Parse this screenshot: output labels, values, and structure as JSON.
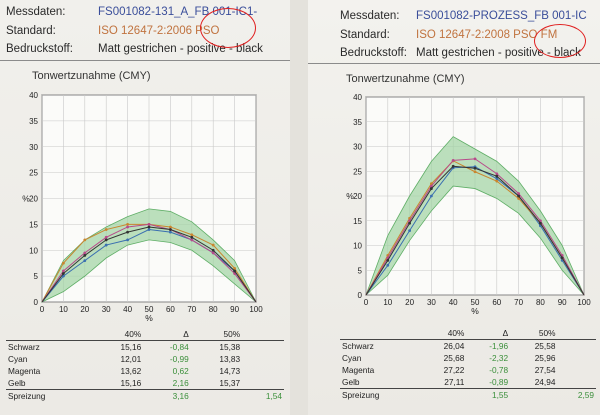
{
  "left": {
    "header": {
      "messdaten_label": "Messdaten:",
      "messdaten_value": "FS001082-131_A_FB 001-IC1-",
      "standard_label": "Standard:",
      "standard_value": "ISO 12647-2:2006 PSO",
      "stoff_label": "Bedruckstoff:",
      "stoff_value": "Matt gestrichen - positive - black"
    },
    "chart_data": {
      "type": "line",
      "title": "Tonwertzunahme (CMY)",
      "ylabel": "%",
      "xlabel": "%",
      "xlim": [
        0,
        100
      ],
      "ylim": [
        0,
        40
      ],
      "x_ticks": [
        "0",
        "10",
        "20",
        "30",
        "40",
        "50",
        "60",
        "70",
        "80",
        "90",
        "100"
      ],
      "y_ticks": [
        "0",
        "5",
        "10",
        "15",
        "20",
        "25",
        "30",
        "35",
        "40"
      ],
      "grid": true,
      "x": [
        0,
        10,
        20,
        30,
        40,
        50,
        60,
        70,
        80,
        90,
        100
      ],
      "tolerance_band": {
        "upper": [
          0,
          8,
          12,
          14.5,
          16.5,
          18,
          17.5,
          15.5,
          12,
          8,
          0
        ],
        "lower": [
          0,
          2,
          5,
          8.5,
          11,
          12,
          11.5,
          10,
          7,
          3.5,
          0
        ],
        "color": "#9fd3a3"
      },
      "series": [
        {
          "color": "#3a6fb0",
          "values": [
            0,
            5,
            8,
            11,
            12,
            14,
            13.5,
            12,
            9.5,
            6,
            0
          ]
        },
        {
          "color": "#c9862f",
          "values": [
            0,
            7.5,
            12,
            14,
            15,
            15,
            14.5,
            13,
            11,
            6.5,
            0
          ]
        },
        {
          "color": "#b84a8a",
          "values": [
            0,
            6,
            9.5,
            12.5,
            14.5,
            15,
            14,
            12,
            9.5,
            5.5,
            0
          ]
        },
        {
          "color": "#333333",
          "values": [
            0,
            5.5,
            9,
            12,
            13.5,
            14.5,
            14,
            12.5,
            10,
            6,
            0
          ]
        }
      ]
    },
    "table": {
      "headers": [
        "",
        "40%",
        "Δ",
        "50%",
        ""
      ],
      "rows": [
        {
          "name": "Schwarz",
          "v40": "15,16",
          "d": "-0,84",
          "v50": "15,38",
          "d2": ""
        },
        {
          "name": "Cyan",
          "v40": "12,01",
          "d": "-0,99",
          "v50": "13,83",
          "d2": ""
        },
        {
          "name": "Magenta",
          "v40": "13,62",
          "d": "0,62",
          "v50": "14,73",
          "d2": ""
        },
        {
          "name": "Gelb",
          "v40": "15,16",
          "d": "2,16",
          "v50": "15,37",
          "d2": ""
        },
        {
          "name": "Spreizung",
          "v40": "",
          "d": "3,16",
          "v50": "",
          "d2": "1,54"
        }
      ]
    }
  },
  "right": {
    "header": {
      "messdaten_label": "Messdaten:",
      "messdaten_value": "FS001082-PROZESS_FB 001-IC",
      "standard_label": "Standard:",
      "standard_value": "ISO 12647-2:2008 PSO FM",
      "stoff_label": "Bedruckstoff:",
      "stoff_value": "Matt gestrichen - positive - black"
    },
    "chart_data": {
      "type": "line",
      "title": "Tonwertzunahme (CMY)",
      "ylabel": "%",
      "xlabel": "%",
      "xlim": [
        0,
        100
      ],
      "ylim": [
        0,
        40
      ],
      "x_ticks": [
        "0",
        "10",
        "20",
        "30",
        "40",
        "50",
        "60",
        "70",
        "80",
        "90",
        "100"
      ],
      "y_ticks": [
        "0",
        "5",
        "10",
        "15",
        "20",
        "25",
        "30",
        "35",
        "40"
      ],
      "grid": true,
      "x": [
        0,
        10,
        20,
        30,
        40,
        50,
        60,
        70,
        80,
        90,
        100
      ],
      "tolerance_band": {
        "upper": [
          0,
          12,
          20,
          27,
          32,
          29.5,
          27,
          23,
          17,
          10,
          0
        ],
        "lower": [
          0,
          4,
          11,
          17,
          22,
          21.5,
          19.5,
          16.5,
          11.5,
          5,
          0
        ],
        "color": "#9fd3a3"
      },
      "series": [
        {
          "color": "#3a6fb0",
          "values": [
            0,
            6,
            13,
            20,
            25.7,
            25.9,
            23.5,
            20,
            14,
            7,
            0
          ]
        },
        {
          "color": "#c9862f",
          "values": [
            0,
            8,
            15.5,
            22.5,
            27.1,
            24.9,
            23,
            19.5,
            14.5,
            7.5,
            0
          ]
        },
        {
          "color": "#b84a8a",
          "values": [
            0,
            7.5,
            15,
            22,
            27.2,
            27.5,
            24.5,
            20.5,
            15,
            8,
            0
          ]
        },
        {
          "color": "#333333",
          "values": [
            0,
            7,
            14.5,
            21.5,
            26.0,
            25.6,
            24,
            20,
            14.5,
            7.5,
            0
          ]
        }
      ]
    },
    "table": {
      "headers": [
        "",
        "40%",
        "Δ",
        "50%",
        ""
      ],
      "rows": [
        {
          "name": "Schwarz",
          "v40": "26,04",
          "d": "-1,96",
          "v50": "25,58",
          "d2": ""
        },
        {
          "name": "Cyan",
          "v40": "25,68",
          "d": "-2,32",
          "v50": "25,96",
          "d2": ""
        },
        {
          "name": "Magenta",
          "v40": "27,22",
          "d": "-0,78",
          "v50": "27,54",
          "d2": ""
        },
        {
          "name": "Gelb",
          "v40": "27,11",
          "d": "-0,89",
          "v50": "24,94",
          "d2": ""
        },
        {
          "name": "Spreizung",
          "v40": "",
          "d": "1,55",
          "v50": "",
          "d2": "2,59"
        }
      ]
    }
  }
}
